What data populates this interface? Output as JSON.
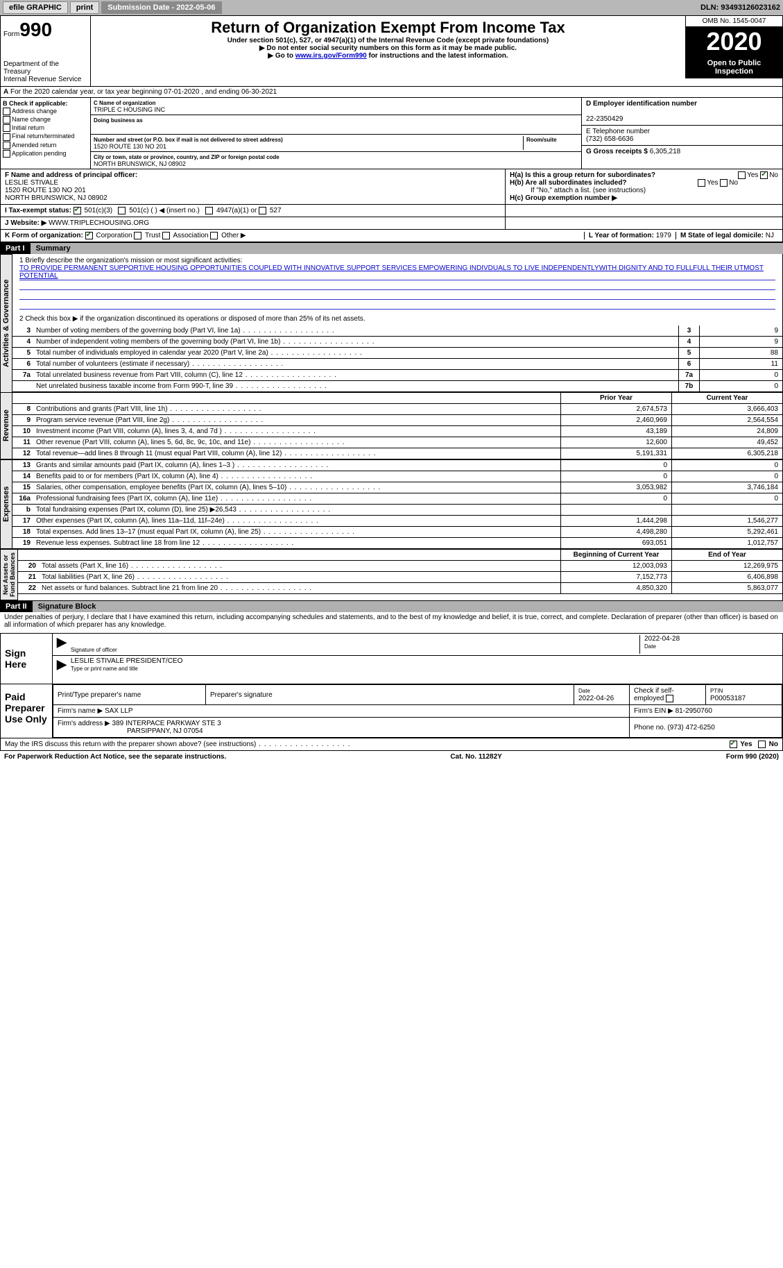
{
  "topbar": {
    "efile": "efile GRAPHIC",
    "print": "print",
    "sub_label": "Submission Date - 2022-05-06",
    "dln": "DLN: 93493126023162"
  },
  "header": {
    "form_prefix": "Form",
    "form_num": "990",
    "dept": "Department of the Treasury\nInternal Revenue Service",
    "title": "Return of Organization Exempt From Income Tax",
    "sub1": "Under section 501(c), 527, or 4947(a)(1) of the Internal Revenue Code (except private foundations)",
    "sub2": "▶ Do not enter social security numbers on this form as it may be made public.",
    "sub3_pre": "▶ Go to ",
    "sub3_link": "www.irs.gov/Form990",
    "sub3_post": " for instructions and the latest information.",
    "omb": "OMB No. 1545-0047",
    "year": "2020",
    "inspect": "Open to Public Inspection"
  },
  "line_a": "For the 2020 calendar year, or tax year beginning 07-01-2020    , and ending 06-30-2021",
  "box_b": {
    "title": "B Check if applicable:",
    "opts": [
      "Address change",
      "Name change",
      "Initial return",
      "Final return/terminated",
      "Amended return",
      "Application pending"
    ]
  },
  "box_c": {
    "name_lbl": "C Name of organization",
    "name": "TRIPLE C HOUSING INC",
    "dba_lbl": "Doing business as",
    "dba": "",
    "addr_lbl": "Number and street (or P.O. box if mail is not delivered to street address)",
    "room_lbl": "Room/suite",
    "addr": "1520 ROUTE 130 NO 201",
    "city_lbl": "City or town, state or province, country, and ZIP or foreign postal code",
    "city": "NORTH BRUNSWICK, NJ  08902"
  },
  "box_d": {
    "lbl": "D Employer identification number",
    "val": "22-2350429"
  },
  "box_e": {
    "lbl": "E Telephone number",
    "val": "(732) 658-6636"
  },
  "box_g": {
    "lbl": "G Gross receipts $",
    "val": "6,305,218"
  },
  "box_f": {
    "lbl": "F Name and address of principal officer:",
    "name": "LESLIE STIVALE",
    "addr1": "1520 ROUTE 130 NO 201",
    "addr2": "NORTH BRUNSWICK, NJ  08902"
  },
  "box_h": {
    "a": "H(a)  Is this a group return for subordinates?",
    "b": "H(b)  Are all subordinates included?",
    "b_note": "If \"No,\" attach a list. (see instructions)",
    "c": "H(c)  Group exemption number ▶",
    "yes": "Yes",
    "no": "No"
  },
  "box_i": {
    "lbl": "I   Tax-exempt status:",
    "o1": "501(c)(3)",
    "o2": "501(c) (  ) ◀ (insert no.)",
    "o3": "4947(a)(1) or",
    "o4": "527"
  },
  "box_j": {
    "lbl": "J   Website: ▶",
    "val": "WWW.TRIPLECHOUSING.ORG"
  },
  "box_k": {
    "lbl": "K Form of organization:",
    "o1": "Corporation",
    "o2": "Trust",
    "o3": "Association",
    "o4": "Other ▶"
  },
  "box_l": {
    "lbl": "L Year of formation:",
    "val": "1979"
  },
  "box_m": {
    "lbl": "M State of legal domicile:",
    "val": "NJ"
  },
  "part1": {
    "hdr": "Part I",
    "title": "Summary",
    "q1_lbl": "1   Briefly describe the organization's mission or most significant activities:",
    "q1": "TO PROVIDE PERMANENT SUPPORTIVE HOUSING OPPORTUNITIES COUPLED WITH INNOVATIVE SUPPORT SERVICES EMPOWERING INDIVDUALS TO LIVE INDEPENDENTLYWITH DIGNITY AND TO FULLFULL THEIR UTMOST POTENTIAL",
    "q2": "2   Check this box ▶      if the organization discontinued its operations or disposed of more than 25% of its net assets."
  },
  "gov_lines": [
    {
      "n": "3",
      "t": "Number of voting members of the governing body (Part VI, line 1a)",
      "k": "3",
      "v": "9"
    },
    {
      "n": "4",
      "t": "Number of independent voting members of the governing body (Part VI, line 1b)",
      "k": "4",
      "v": "9"
    },
    {
      "n": "5",
      "t": "Total number of individuals employed in calendar year 2020 (Part V, line 2a)",
      "k": "5",
      "v": "88"
    },
    {
      "n": "6",
      "t": "Total number of volunteers (estimate if necessary)",
      "k": "6",
      "v": "11"
    },
    {
      "n": "7a",
      "t": "Total unrelated business revenue from Part VIII, column (C), line 12",
      "k": "7a",
      "v": "0"
    },
    {
      "n": "",
      "t": "Net unrelated business taxable income from Form 990-T, line 39",
      "k": "7b",
      "v": "0"
    }
  ],
  "fin_hdr": {
    "py": "Prior Year",
    "cy": "Current Year"
  },
  "rev_lines": [
    {
      "n": "8",
      "t": "Contributions and grants (Part VIII, line 1h)",
      "py": "2,674,573",
      "cy": "3,666,403"
    },
    {
      "n": "9",
      "t": "Program service revenue (Part VIII, line 2g)",
      "py": "2,460,969",
      "cy": "2,564,554"
    },
    {
      "n": "10",
      "t": "Investment income (Part VIII, column (A), lines 3, 4, and 7d )",
      "py": "43,189",
      "cy": "24,809"
    },
    {
      "n": "11",
      "t": "Other revenue (Part VIII, column (A), lines 5, 6d, 8c, 9c, 10c, and 11e)",
      "py": "12,600",
      "cy": "49,452"
    },
    {
      "n": "12",
      "t": "Total revenue—add lines 8 through 11 (must equal Part VIII, column (A), line 12)",
      "py": "5,191,331",
      "cy": "6,305,218"
    }
  ],
  "exp_lines": [
    {
      "n": "13",
      "t": "Grants and similar amounts paid (Part IX, column (A), lines 1–3 )",
      "py": "0",
      "cy": "0"
    },
    {
      "n": "14",
      "t": "Benefits paid to or for members (Part IX, column (A), line 4)",
      "py": "0",
      "cy": "0"
    },
    {
      "n": "15",
      "t": "Salaries, other compensation, employee benefits (Part IX, column (A), lines 5–10)",
      "py": "3,053,982",
      "cy": "3,746,184"
    },
    {
      "n": "16a",
      "t": "Professional fundraising fees (Part IX, column (A), line 11e)",
      "py": "0",
      "cy": "0"
    },
    {
      "n": "b",
      "t": "Total fundraising expenses (Part IX, column (D), line 25) ▶26,543",
      "py": "",
      "cy": "",
      "grey": true
    },
    {
      "n": "17",
      "t": "Other expenses (Part IX, column (A), lines 11a–11d, 11f–24e)",
      "py": "1,444,298",
      "cy": "1,546,277"
    },
    {
      "n": "18",
      "t": "Total expenses. Add lines 13–17 (must equal Part IX, column (A), line 25)",
      "py": "4,498,280",
      "cy": "5,292,461"
    },
    {
      "n": "19",
      "t": "Revenue less expenses. Subtract line 18 from line 12",
      "py": "693,051",
      "cy": "1,012,757"
    }
  ],
  "na_hdr": {
    "b": "Beginning of Current Year",
    "e": "End of Year"
  },
  "na_lines": [
    {
      "n": "20",
      "t": "Total assets (Part X, line 16)",
      "py": "12,003,093",
      "cy": "12,269,975"
    },
    {
      "n": "21",
      "t": "Total liabilities (Part X, line 26)",
      "py": "7,152,773",
      "cy": "6,406,898"
    },
    {
      "n": "22",
      "t": "Net assets or fund balances. Subtract line 21 from line 20",
      "py": "4,850,320",
      "cy": "5,863,077"
    }
  ],
  "vtabs": {
    "gov": "Activities & Governance",
    "rev": "Revenue",
    "exp": "Expenses",
    "na": "Net Assets or\nFund Balances"
  },
  "part2": {
    "hdr": "Part II",
    "title": "Signature Block",
    "decl": "Under penalties of perjury, I declare that I have examined this return, including accompanying schedules and statements, and to the best of my knowledge and belief, it is true, correct, and complete. Declaration of preparer (other than officer) is based on all information of which preparer has any knowledge.",
    "sign_here": "Sign Here",
    "sig_of_officer": "Signature of officer",
    "date_lbl": "Date",
    "sig_date": "2022-04-28",
    "officer_name": "LESLIE STIVALE  PRESIDENT/CEO",
    "officer_sub": "Type or print name and title",
    "paid": "Paid Preparer Use Only",
    "prep_name_lbl": "Print/Type preparer's name",
    "prep_sig_lbl": "Preparer's signature",
    "prep_date_lbl": "Date",
    "prep_date": "2022-04-26",
    "check_if": "Check        if self-employed",
    "ptin_lbl": "PTIN",
    "ptin": "P00053187",
    "firm_name_lbl": "Firm's name    ▶",
    "firm_name": "SAX LLP",
    "firm_ein_lbl": "Firm's EIN ▶",
    "firm_ein": "81-2950760",
    "firm_addr_lbl": "Firm's address ▶",
    "firm_addr1": "389 INTERPACE PARKWAY STE 3",
    "firm_addr2": "PARSIPPANY, NJ  07054",
    "phone_lbl": "Phone no.",
    "phone": "(973) 472-6250",
    "discuss": "May the IRS discuss this return with the preparer shown above? (see instructions)",
    "yes": "Yes",
    "no": "No"
  },
  "footer": {
    "left": "For Paperwork Reduction Act Notice, see the separate instructions.",
    "mid": "Cat. No. 11282Y",
    "right": "Form 990 (2020)"
  }
}
